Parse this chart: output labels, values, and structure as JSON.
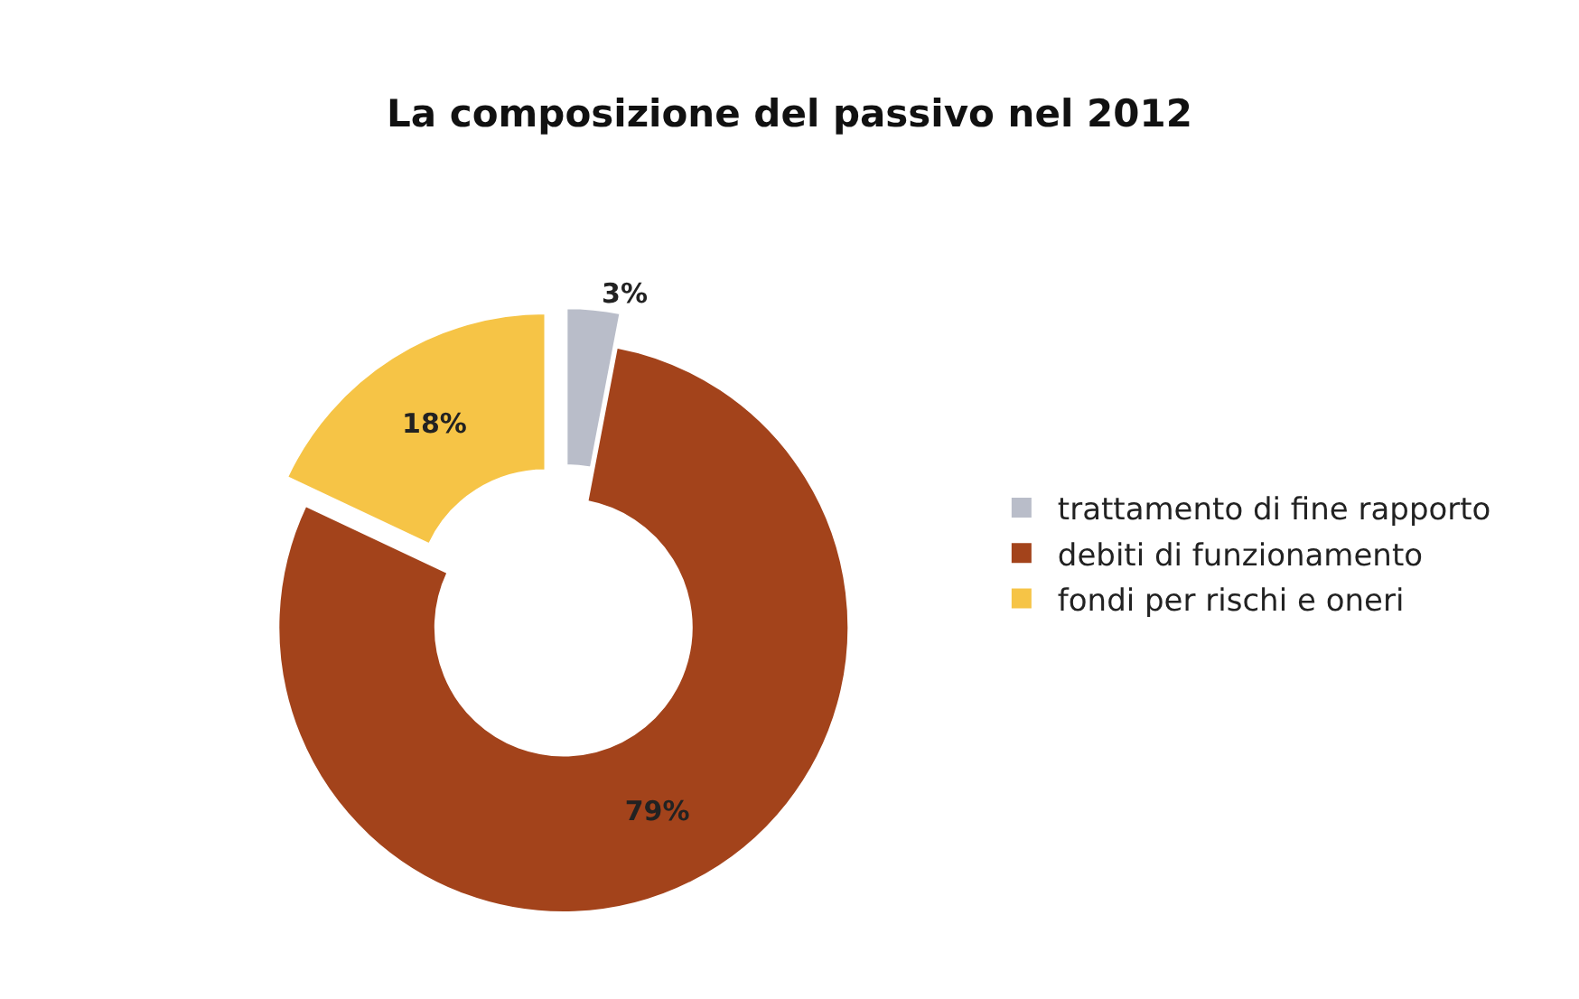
{
  "chart_data": {
    "type": "donut",
    "title": "La composizione del passivo nel 2012",
    "categories": [
      "trattamento di fine rapporto",
      "debiti di funzionamento",
      "fondi per rischi e oneri"
    ],
    "values": [
      3,
      79,
      18
    ],
    "colors": [
      "#b9bdc9",
      "#a3431b",
      "#f6c446"
    ],
    "value_labels": [
      "3%",
      "79%",
      "18%"
    ],
    "legend": "right"
  }
}
